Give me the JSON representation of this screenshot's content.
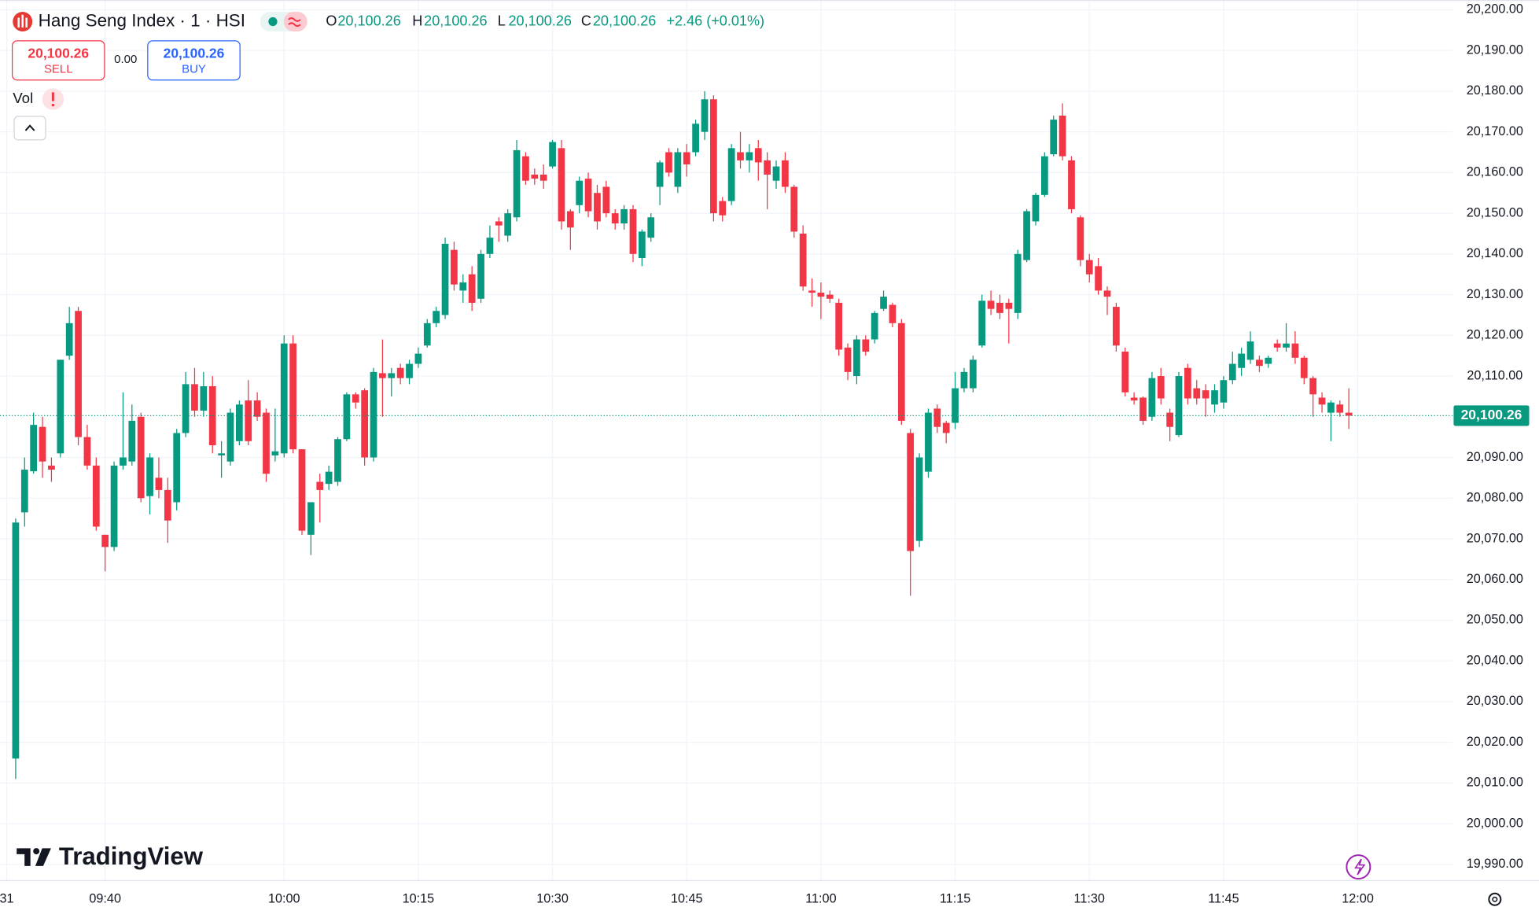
{
  "header": {
    "symbol": "Hang Seng Index · 1 · HSI",
    "ohlc": [
      {
        "key": "O",
        "value": "20,100.26"
      },
      {
        "key": "H",
        "value": "20,100.26"
      },
      {
        "key": "L",
        "value": "20,100.26"
      },
      {
        "key": "C",
        "value": "20,100.26"
      }
    ],
    "change": "+2.46 (+0.01%)",
    "sell_price": "20,100.26",
    "sell_label": "SELL",
    "spread": "0.00",
    "buy_price": "20,100.26",
    "buy_label": "BUY",
    "volume_label": "Vol",
    "logo": "TradingView"
  },
  "chart_data": {
    "type": "candlestick",
    "open": [
      20016,
      20076.5,
      20086.6,
      20097.5,
      20088,
      20091,
      20115,
      20126,
      20095,
      20088,
      20071,
      20068,
      20088,
      20089,
      20100,
      20080.5,
      20085,
      20082,
      20079,
      20096,
      20108,
      20101.5,
      20107.5,
      20090.5,
      20089,
      20094,
      20104,
      20104,
      20101,
      20090.5,
      20091,
      20118,
      20092,
      20071,
      20084,
      20083.5,
      20084,
      20094.5,
      20105.5,
      20106.5,
      20090,
      20110.7,
      20109.5,
      20112,
      20109.5,
      20113,
      20117.5,
      20123,
      20125,
      20141,
      20131,
      20135,
      20129,
      20140,
      20148,
      20144.5,
      20149,
      20164,
      20159.5,
      20159.5,
      20161.5,
      20166,
      20150.5,
      20152,
      20158.5,
      20155,
      20156.5,
      20150,
      20147.5,
      20151,
      20139,
      20144,
      20156.5,
      20165,
      20156.5,
      20165,
      20165,
      20170,
      20178,
      20153,
      20153,
      20165,
      20163,
      20166,
      20163,
      20158,
      20163,
      20156.5,
      20145,
      20131,
      20130.5,
      20130,
      20128,
      20117,
      20110,
      20119,
      20119,
      20126.5,
      20127.5,
      20123,
      20096,
      20069.5,
      20086.5,
      20102,
      20098.5,
      20098.5,
      20107,
      20107,
      20117.5,
      20128.5,
      20128,
      20128,
      20125.5,
      20138.5,
      20148,
      20154.5,
      20164.5,
      20174,
      20163,
      20149,
      20138.5,
      20137,
      20131,
      20127,
      20116,
      20104.7,
      20104.7,
      20100,
      20110,
      20101,
      20095.5,
      20112,
      20107,
      20106.5,
      20103,
      20103.5,
      20109,
      20112,
      20114,
      20114,
      20113,
      20118,
      20117,
      20118,
      20114.5,
      20109.5,
      20104.7,
      20101,
      20103,
      20101
    ],
    "high": [
      20075,
      20090,
      20101,
      20100,
      20090,
      20114,
      20127,
      20127,
      20098,
      20090,
      20071,
      20089,
      20106,
      20103,
      20101,
      20091,
      20090,
      20085,
      20097,
      20111,
      20112,
      20111,
      20110,
      20094,
      20102,
      20104,
      20109,
      20106,
      20102,
      20102,
      20120,
      20120,
      20092,
      20079,
      20086,
      20088,
      20095,
      20106,
      20106,
      20107,
      20112,
      20119,
      20112,
      20113,
      20114,
      20117,
      20124,
      20127,
      20144,
      20143,
      20135,
      20137,
      20141,
      20147,
      20149,
      20151,
      20168,
      20165,
      20161,
      20162,
      20168,
      20168,
      20151,
      20159,
      20160,
      20157,
      20158,
      20151,
      20152,
      20152,
      20146,
      20150,
      20163,
      20166,
      20166,
      20167,
      20173,
      20180,
      20179,
      20154,
      20167,
      20170,
      20167,
      20168,
      20165,
      20163,
      20165,
      20157,
      20147,
      20134,
      20133,
      20131,
      20129,
      20118,
      20120,
      20120,
      20126,
      20131,
      20128,
      20124,
      20097,
      20091,
      20102,
      20103,
      20099,
      20111,
      20112,
      20115,
      20130,
      20131,
      20130,
      20129,
      20141,
      20151,
      20155,
      20165,
      20174,
      20177,
      20164,
      20149.5,
      20140,
      20139,
      20132,
      20128,
      20117,
      20106,
      20105,
      20111,
      20112,
      20102,
      20111,
      20113,
      20109,
      20108,
      20108,
      20110,
      20116,
      20117,
      20121,
      20115,
      20115,
      20119,
      20123,
      20121,
      20115,
      20110,
      20106,
      20104,
      20104,
      20107
    ],
    "low": [
      20011,
      20073,
      20086,
      20085,
      20084,
      20090,
      20114,
      20093,
      20087,
      20072,
      20062,
      20067,
      20087,
      20088,
      20079,
      20076,
      20080,
      20069,
      20077,
      20095,
      20100,
      20100,
      20091,
      20085,
      20088,
      20093,
      20093,
      20099,
      20084,
      20089,
      20090,
      20091,
      20071,
      20066,
      20074,
      20082,
      20083,
      20094,
      20102,
      20088,
      20089,
      20100,
      20105,
      20108,
      20108,
      20112,
      20117,
      20122,
      20124,
      20131,
      20128,
      20126,
      20128,
      20139,
      20143,
      20143,
      20148,
      20157,
      20157,
      20156,
      20161,
      20146,
      20141,
      20150,
      20149,
      20146,
      20149,
      20146,
      20146,
      20138,
      20137,
      20143,
      20152,
      20159,
      20155,
      20159,
      20164,
      20168,
      20148,
      20148,
      20152,
      20161,
      20160,
      20158,
      20151,
      20156,
      20155,
      20144,
      20131,
      20127,
      20124,
      20128,
      20115,
      20109,
      20108,
      20115,
      20118,
      20126,
      20122,
      20098,
      20056,
      20068,
      20085,
      20096,
      20093.5,
      20097,
      20106,
      20106,
      20117,
      20125,
      20124,
      20118,
      20124,
      20138,
      20147,
      20154,
      20164,
      20163,
      20150,
      20137,
      20133,
      20130,
      20125,
      20116,
      20105,
      20103,
      20098,
      20099,
      20103,
      20094,
      20095,
      20103,
      20103,
      20100,
      20101,
      20102,
      20108,
      20110,
      20113,
      20111,
      20112,
      20116,
      20116,
      20113,
      20108,
      20100,
      20101,
      20094,
      20100,
      20097
    ],
    "close": [
      20074,
      20087,
      20098,
      20089,
      20087,
      20114,
      20123,
      20095,
      20088,
      20073,
      20068,
      20088,
      20090,
      20099,
      20080,
      20090,
      20082,
      20074.5,
      20096,
      20108,
      20101.5,
      20107.5,
      20093,
      20091,
      20101,
      20103,
      20094,
      20100,
      20086,
      20091.5,
      20118,
      20092,
      20072,
      20079,
      20082,
      20086.5,
      20094.5,
      20105.5,
      20103.5,
      20090,
      20111,
      20109.5,
      20110.7,
      20109.5,
      20113,
      20115.5,
      20123,
      20126,
      20142.5,
      20132.5,
      20133,
      20128,
      20140,
      20144,
      20147,
      20150,
      20165.5,
      20158,
      20158.5,
      20158,
      20167.5,
      20148,
      20146.5,
      20158,
      20150.5,
      20148,
      20150,
      20147.5,
      20151,
      20140,
      20145.5,
      20149,
      20162.5,
      20160,
      20165,
      20162,
      20172,
      20178,
      20150,
      20149.5,
      20166,
      20163,
      20165,
      20162.5,
      20159.5,
      20161.5,
      20156.5,
      20145.5,
      20132,
      20130.5,
      20129.5,
      20129,
      20116.5,
      20111,
      20119,
      20116,
      20125.5,
      20129.5,
      20123,
      20099,
      20067,
      20090,
      20101,
      20097.5,
      20096,
      20107,
      20111,
      20114,
      20128.5,
      20126.5,
      20125.5,
      20126.5,
      20140,
      20150.5,
      20154.5,
      20164,
      20173,
      20164,
      20151,
      20138.5,
      20135,
      20131,
      20129.5,
      20117.5,
      20106,
      20104,
      20099,
      20109.5,
      20104.5,
      20097.5,
      20110,
      20104.5,
      20104.5,
      20104.5,
      20106.5,
      20109,
      20113,
      20115.5,
      20118.5,
      20112.5,
      20114.5,
      20117,
      20118,
      20114.5,
      20109.5,
      20105.5,
      20103,
      20103.5,
      20101,
      20100.26
    ],
    "up_color": "#089981",
    "down_color": "#f23645",
    "ylim": [
      19986,
      20202.4
    ],
    "yticks": [
      {
        "value": 19990,
        "label": "19,990.00"
      },
      {
        "value": 20000,
        "label": "20,000.00"
      },
      {
        "value": 20010,
        "label": "20,010.00"
      },
      {
        "value": 20020,
        "label": "20,020.00"
      },
      {
        "value": 20030,
        "label": "20,030.00"
      },
      {
        "value": 20040,
        "label": "20,040.00"
      },
      {
        "value": 20050,
        "label": "20,050.00"
      },
      {
        "value": 20060,
        "label": "20,060.00"
      },
      {
        "value": 20070,
        "label": "20,070.00"
      },
      {
        "value": 20080,
        "label": "20,080.00"
      },
      {
        "value": 20090,
        "label": "20,090.00"
      },
      {
        "value": 20110,
        "label": "20,110.00"
      },
      {
        "value": 20120,
        "label": "20,120.00"
      },
      {
        "value": 20130,
        "label": "20,130.00"
      },
      {
        "value": 20140,
        "label": "20,140.00"
      },
      {
        "value": 20150,
        "label": "20,150.00"
      },
      {
        "value": 20160,
        "label": "20,160.00"
      },
      {
        "value": 20170,
        "label": "20,170.00"
      },
      {
        "value": 20180,
        "label": "20,180.00"
      },
      {
        "value": 20190,
        "label": "20,190.00"
      },
      {
        "value": 20200,
        "label": "20,200.00"
      }
    ],
    "xlim": [
      -1.75,
      160.6
    ],
    "xticks": [
      {
        "value": -1,
        "label": "31"
      },
      {
        "value": 10,
        "label": "09:40"
      },
      {
        "value": 30,
        "label": "10:00"
      },
      {
        "value": 45,
        "label": "10:15"
      },
      {
        "value": 60,
        "label": "10:30"
      },
      {
        "value": 75,
        "label": "10:45"
      },
      {
        "value": 90,
        "label": "11:00"
      },
      {
        "value": 105,
        "label": "11:15"
      },
      {
        "value": 120,
        "label": "11:30"
      },
      {
        "value": 135,
        "label": "11:45"
      },
      {
        "value": 150,
        "label": "12:00"
      }
    ],
    "last_price": {
      "value": 20100.26,
      "label": "20,100.26"
    },
    "grid": true
  }
}
